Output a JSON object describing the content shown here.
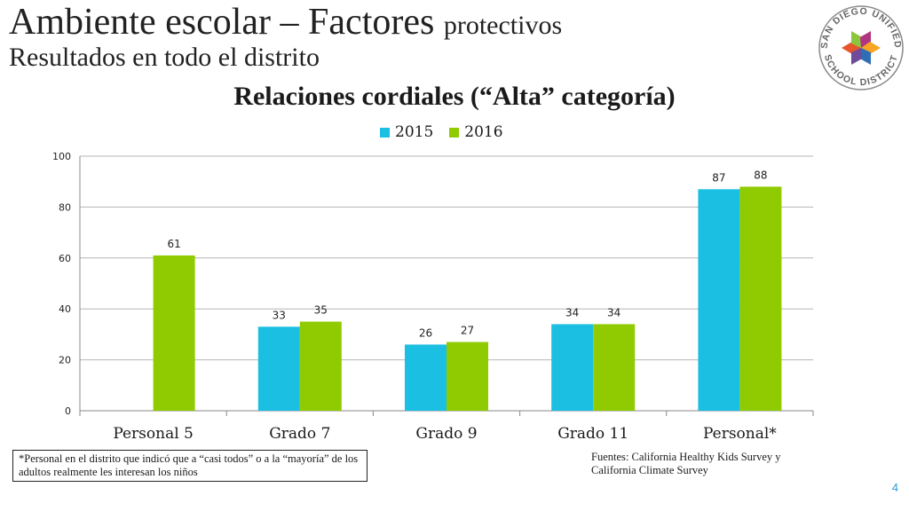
{
  "header": {
    "title_main": "Ambiente escolar – Factores",
    "title_small": "protectivos",
    "subtitle": "Resultados en todo el distrito"
  },
  "logo": {
    "top_text": "SAN DIEGO UNIFIED",
    "bottom_text": "SCHOOL DISTRICT",
    "colors": [
      "#e8542b",
      "#8cc63f",
      "#b0357e",
      "#f6a623",
      "#2e6eb5",
      "#6f4b9b"
    ]
  },
  "chart_data": {
    "type": "bar",
    "title": "Relaciones cordiales (“Alta” categoría)",
    "categories": [
      "Personal 5",
      "Grado 7",
      "Grado 9",
      "Grado 11",
      "Personal*"
    ],
    "series": [
      {
        "name": "2015",
        "color": "#1bbfe1",
        "values": [
          null,
          33,
          26,
          34,
          87
        ]
      },
      {
        "name": "2016",
        "color": "#8fcb00",
        "values": [
          61,
          35,
          27,
          34,
          88
        ]
      }
    ],
    "ylim": [
      0,
      100
    ],
    "yticks": [
      "0",
      "20",
      "40",
      "60",
      "80",
      "100"
    ],
    "xlabel": "",
    "ylabel": "",
    "grid": true,
    "legend_position": "top"
  },
  "footer": {
    "note": "*Personal en el distrito que indicó que a “casi todos” o a la “mayoría” de los adultos realmente les interesan los niños",
    "sources": "Fuentes: California Healthy Kids Survey y California Climate  Survey",
    "page_number": "4"
  }
}
